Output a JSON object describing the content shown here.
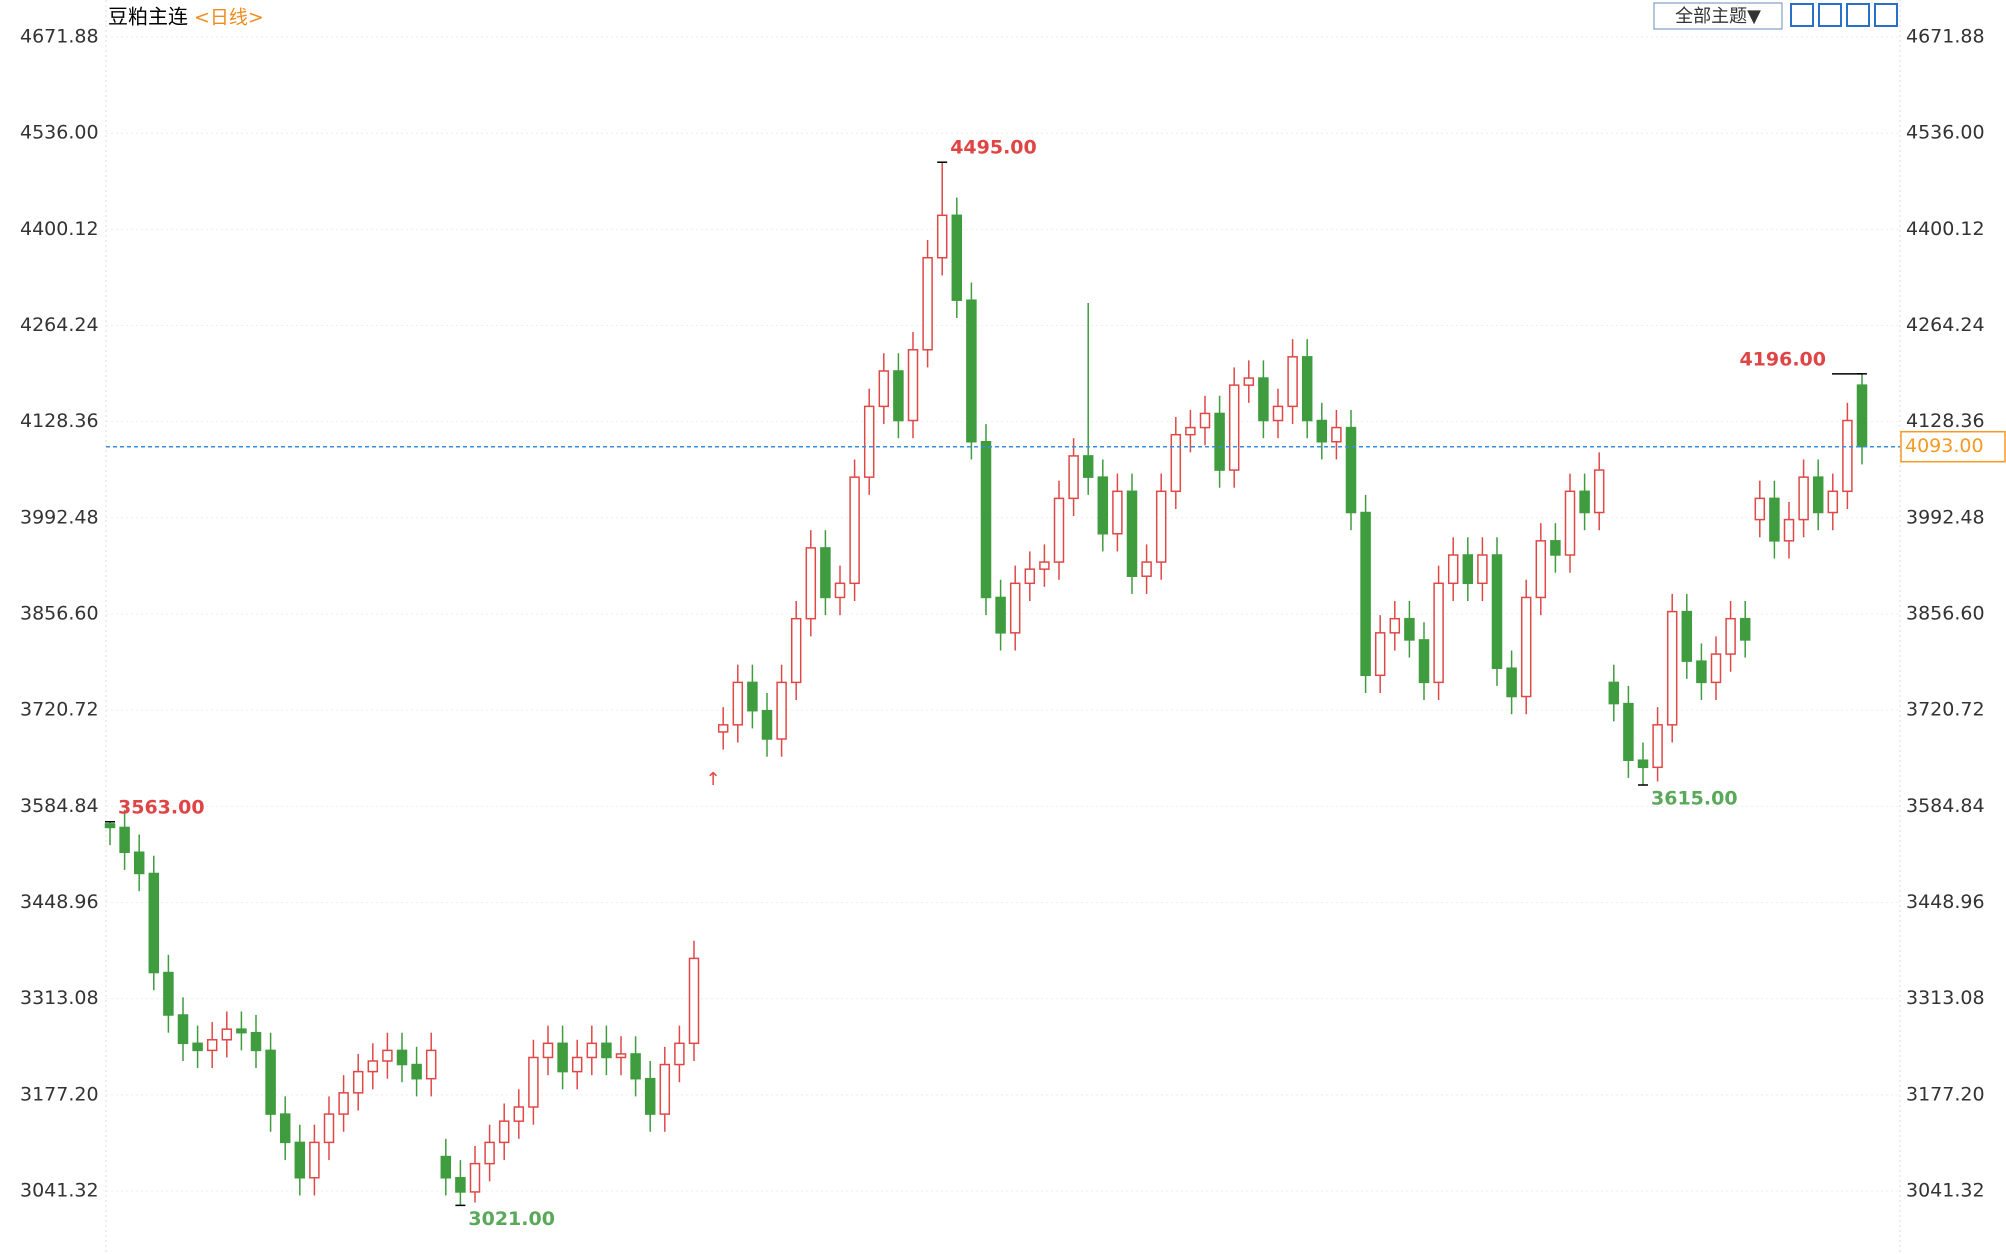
{
  "chart_data": {
    "type": "candlestick",
    "title": "豆粕主连",
    "period": "<日线>",
    "theme_button": "全部主题▼",
    "roll_marker": "↑",
    "ylim": [
      2952.3,
      4724.2
    ],
    "yticks": [
      {
        "value": 3041.32,
        "label": "3041.32"
      },
      {
        "value": 3177.2,
        "label": "3177.20"
      },
      3313.08,
      3448.96,
      3584.84,
      3720.72,
      {
        "value": 3856.6,
        "label": "3856.60"
      },
      3992.48,
      4128.36,
      4264.24,
      4400.12,
      {
        "value": 4536,
        "label": "4536.00"
      },
      4671.88
    ],
    "grid": true,
    "up_color": "#e04848",
    "down_color": "#3f9c3f",
    "categories": [
      null,
      null,
      null,
      null,
      null,
      null,
      null,
      null,
      null,
      null,
      null,
      null,
      null,
      null,
      null,
      null,
      null,
      null,
      null,
      null,
      null,
      null,
      null,
      null,
      null,
      null,
      null,
      null,
      null,
      null,
      null,
      null,
      null,
      null,
      null,
      null,
      null,
      null,
      null,
      null,
      null,
      null,
      null,
      null,
      null,
      null,
      null,
      null,
      null,
      null,
      null,
      null,
      null,
      null,
      null,
      null,
      null,
      null,
      null,
      null,
      null,
      null,
      null,
      null,
      null,
      null,
      null,
      null,
      null,
      null,
      null,
      null,
      null,
      null,
      null,
      null,
      null,
      null,
      null,
      null,
      null,
      null,
      null,
      null,
      null,
      null,
      null,
      null,
      null,
      null,
      null,
      null,
      null,
      null,
      null,
      null,
      null,
      null,
      null,
      null,
      null,
      null,
      null,
      null,
      null,
      null,
      null,
      null,
      null,
      null,
      null,
      null,
      null,
      null,
      null,
      null,
      null,
      null,
      null,
      null,
      null
    ],
    "open": [
      3560,
      3555,
      3520,
      3490,
      3350,
      3290,
      3250,
      3240,
      3255,
      3270,
      3265,
      3240,
      3150,
      3110,
      3060,
      3110,
      3150,
      3180,
      3210,
      3225,
      3240,
      3220,
      3200,
      3090,
      3060,
      3040,
      3080,
      3110,
      3140,
      3160,
      3230,
      3250,
      3210,
      3230,
      3250,
      3230,
      3235,
      3200,
      3150,
      3220,
      3250,
      null,
      3690,
      3700,
      3760,
      3720,
      3680,
      3760,
      3850,
      3950,
      3880,
      3900,
      4050,
      4150,
      4200,
      4130,
      4230,
      4360,
      4420,
      4300,
      4100,
      3880,
      3830,
      3900,
      3920,
      3930,
      4020,
      4080,
      4050,
      3970,
      4030,
      3910,
      3930,
      4030,
      4110,
      4120,
      4140,
      4060,
      4180,
      4190,
      4130,
      4150,
      4220,
      4130,
      4100,
      4120,
      4000,
      3770,
      3830,
      3850,
      3820,
      3760,
      3900,
      3940,
      3900,
      3940,
      3780,
      3740,
      3880,
      3960,
      3940,
      4030,
      4000,
      3760,
      3730,
      3650,
      3640,
      3700,
      3860,
      3790,
      3760,
      3800,
      3850,
      3990,
      4020,
      3960,
      3990,
      4050,
      4000,
      4030,
      4180
    ],
    "high": [
      3563,
      3580,
      3545,
      3515,
      3375,
      3315,
      3275,
      3280,
      3295,
      3295,
      3290,
      3265,
      3175,
      3135,
      3135,
      3175,
      3205,
      3235,
      3250,
      3265,
      3265,
      3245,
      3265,
      3115,
      3085,
      3105,
      3135,
      3165,
      3185,
      3255,
      3275,
      3275,
      3255,
      3275,
      3275,
      3260,
      3260,
      3225,
      3245,
      3275,
      3395,
      null,
      3725,
      3785,
      3785,
      3745,
      3785,
      3875,
      3975,
      3975,
      3925,
      4075,
      4175,
      4225,
      4225,
      4255,
      4385,
      4495,
      4445,
      4325,
      4125,
      3905,
      3925,
      3945,
      3955,
      4045,
      4105,
      4296,
      4075,
      4055,
      4055,
      3955,
      4055,
      4135,
      4145,
      4165,
      4165,
      4205,
      4215,
      4215,
      4175,
      4245,
      4245,
      4155,
      4145,
      4145,
      4025,
      3855,
      3875,
      3875,
      3845,
      3925,
      3965,
      3965,
      3965,
      3965,
      3805,
      3905,
      3985,
      3985,
      4055,
      4055,
      4085,
      3785,
      3755,
      3675,
      3725,
      3885,
      3885,
      3815,
      3825,
      3875,
      3875,
      4045,
      4045,
      4015,
      4075,
      4075,
      4055,
      4155,
      4196
    ],
    "low": [
      3530,
      3495,
      3465,
      3325,
      3265,
      3225,
      3215,
      3215,
      3230,
      3240,
      3215,
      3125,
      3085,
      3035,
      3035,
      3085,
      3125,
      3155,
      3185,
      3200,
      3195,
      3175,
      3175,
      3035,
      3021,
      3025,
      3055,
      3085,
      3115,
      3135,
      3205,
      3185,
      3185,
      3205,
      3205,
      3205,
      3175,
      3125,
      3125,
      3195,
      3225,
      null,
      3665,
      3675,
      3695,
      3655,
      3655,
      3735,
      3825,
      3855,
      3855,
      3875,
      4025,
      4125,
      4105,
      4105,
      4205,
      4335,
      4275,
      4075,
      3855,
      3805,
      3805,
      3875,
      3895,
      3905,
      3995,
      4025,
      3945,
      3945,
      3885,
      3885,
      3905,
      4005,
      4085,
      4095,
      4035,
      4035,
      4155,
      4105,
      4105,
      4125,
      4105,
      4075,
      4075,
      3975,
      3745,
      3745,
      3805,
      3795,
      3735,
      3735,
      3875,
      3875,
      3875,
      3755,
      3715,
      3715,
      3855,
      3915,
      3915,
      3975,
      3975,
      3705,
      3625,
      3615,
      3620,
      3675,
      3765,
      3735,
      3735,
      3775,
      3795,
      3965,
      3935,
      3935,
      3965,
      3975,
      3975,
      4005,
      4068
    ],
    "close": [
      3555,
      3520,
      3490,
      3350,
      3290,
      3250,
      3240,
      3255,
      3270,
      3265,
      3240,
      3150,
      3110,
      3060,
      3110,
      3150,
      3180,
      3210,
      3225,
      3240,
      3220,
      3200,
      3240,
      3060,
      3040,
      3080,
      3110,
      3140,
      3160,
      3230,
      3250,
      3210,
      3230,
      3250,
      3230,
      3235,
      3200,
      3150,
      3220,
      3250,
      3370,
      null,
      3700,
      3760,
      3720,
      3680,
      3760,
      3850,
      3950,
      3880,
      3900,
      4050,
      4150,
      4200,
      4130,
      4230,
      4360,
      4420,
      4300,
      4100,
      3880,
      3830,
      3900,
      3920,
      3930,
      4020,
      4080,
      4050,
      3970,
      4030,
      3910,
      3930,
      4030,
      4110,
      4120,
      4140,
      4060,
      4180,
      4190,
      4130,
      4150,
      4220,
      4130,
      4100,
      4120,
      4000,
      3770,
      3830,
      3850,
      3820,
      3760,
      3900,
      3940,
      3900,
      3940,
      3780,
      3740,
      3880,
      3960,
      3940,
      4030,
      4000,
      4060,
      3730,
      3650,
      3640,
      3700,
      3860,
      3790,
      3760,
      3800,
      3850,
      3820,
      4020,
      3960,
      3990,
      4050,
      4000,
      4030,
      4130,
      4093
    ],
    "annotations": [
      {
        "value": 3563,
        "label": "3563.00"
      },
      {
        "value": 3021,
        "label": "3021.00"
      },
      {
        "value": 4495,
        "label": "4495.00"
      },
      {
        "value": 3615,
        "label": "3615.00"
      },
      {
        "value": 4196,
        "label": "4196.00"
      }
    ],
    "last_price": {
      "value": 4093,
      "label": "4093.00"
    }
  }
}
